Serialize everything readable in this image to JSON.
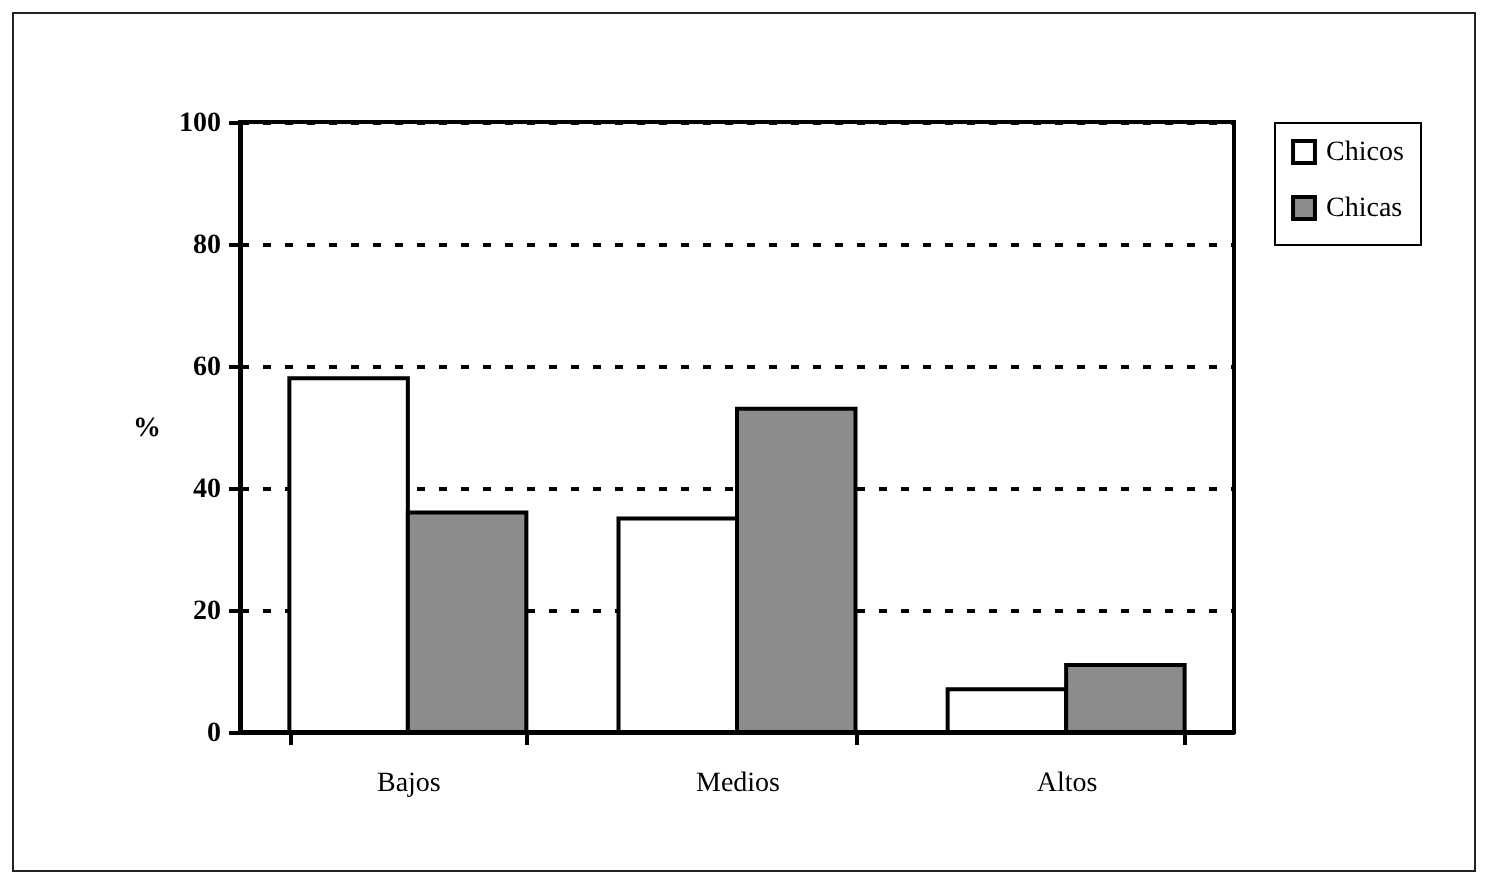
{
  "chart_data": {
    "type": "bar",
    "ylabel": "%",
    "categories": [
      "Bajos",
      "Medios",
      "Altos"
    ],
    "series": [
      {
        "name": "Chicos",
        "color": "#ffffff",
        "values": [
          58,
          35,
          7
        ]
      },
      {
        "name": "Chicas",
        "color": "#8c8c8c",
        "values": [
          36,
          53,
          11
        ]
      }
    ],
    "ylim": [
      0,
      100
    ],
    "yticks": [
      0,
      20,
      40,
      60,
      80,
      100
    ],
    "grid": "y",
    "legend": "right"
  }
}
